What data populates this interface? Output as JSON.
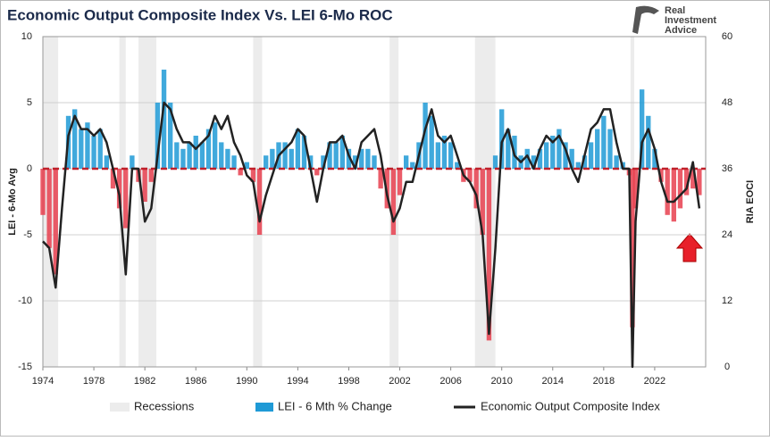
{
  "chart_data": {
    "type": "bar-line",
    "title": "Economic Output Composite Index Vs. LEI 6-Mo ROC",
    "ylabel": "LEI - 6-Mo Avg",
    "y2label": "RIA EOCI",
    "logo_text": [
      "Real",
      "Investment",
      "Advice"
    ],
    "recession_name": "Recessions",
    "recession_color": "#ececec",
    "recessions": [
      [
        1973.9,
        1975.2
      ],
      [
        1980.0,
        1980.5
      ],
      [
        1981.5,
        1982.9
      ],
      [
        1990.5,
        1991.2
      ],
      [
        2001.2,
        2001.9
      ],
      [
        2007.9,
        2009.5
      ],
      [
        2020.1,
        2020.4
      ]
    ],
    "x": [
      1974.0,
      1974.5,
      1975.0,
      1975.5,
      1976.0,
      1976.5,
      1977.0,
      1977.5,
      1978.0,
      1978.5,
      1979.0,
      1979.5,
      1980.0,
      1980.5,
      1981.0,
      1981.5,
      1982.0,
      1982.5,
      1983.0,
      1983.5,
      1984.0,
      1984.5,
      1985.0,
      1985.5,
      1986.0,
      1986.5,
      1987.0,
      1987.5,
      1988.0,
      1988.5,
      1989.0,
      1989.5,
      1990.0,
      1990.5,
      1991.0,
      1991.5,
      1992.0,
      1992.5,
      1993.0,
      1993.5,
      1994.0,
      1994.5,
      1995.0,
      1995.5,
      1996.0,
      1996.5,
      1997.0,
      1997.5,
      1998.0,
      1998.5,
      1999.0,
      1999.5,
      2000.0,
      2000.5,
      2001.0,
      2001.5,
      2002.0,
      2002.5,
      2003.0,
      2003.5,
      2004.0,
      2004.5,
      2005.0,
      2005.5,
      2006.0,
      2006.5,
      2007.0,
      2007.5,
      2008.0,
      2008.5,
      2009.0,
      2009.5,
      2010.0,
      2010.5,
      2011.0,
      2011.5,
      2012.0,
      2012.5,
      2013.0,
      2013.5,
      2014.0,
      2014.5,
      2015.0,
      2015.5,
      2016.0,
      2016.5,
      2017.0,
      2017.5,
      2018.0,
      2018.5,
      2019.0,
      2019.5,
      2020.0,
      2020.25,
      2020.5,
      2021.0,
      2021.5,
      2022.0,
      2022.5,
      2023.0,
      2023.5,
      2024.0,
      2024.5,
      2025.0,
      2025.5
    ],
    "series": [
      {
        "name": "LEI - 6 Mth % Change",
        "color": "#1f9ad6",
        "negative_color": "#e8404f",
        "values": [
          -3.5,
          -6,
          -8,
          0,
          4,
          4.5,
          3,
          3.5,
          2.5,
          3,
          1,
          -1.5,
          -3,
          -4.5,
          1,
          -1,
          -2.5,
          -1,
          5,
          7.5,
          5,
          2,
          1.5,
          2,
          2.5,
          2,
          3,
          3.5,
          2,
          1.5,
          1,
          -0.5,
          0.5,
          -1,
          -5,
          1,
          1.5,
          2,
          2,
          1.5,
          3,
          2.5,
          1,
          -0.5,
          1,
          2,
          2,
          2.5,
          1.5,
          1,
          1.5,
          1.5,
          1,
          -1.5,
          -3,
          -5,
          -2,
          1,
          0.5,
          2,
          5,
          4,
          2,
          2.5,
          2,
          0.5,
          -1,
          -1,
          -3,
          -5,
          -13,
          1,
          4.5,
          3,
          2.5,
          1,
          1.5,
          1,
          1.5,
          2,
          2.5,
          3,
          2,
          1.5,
          0.5,
          1,
          2,
          3,
          4,
          3,
          1,
          0.5,
          -0.5,
          -12,
          -3,
          6,
          4,
          1.5,
          -1,
          -3.5,
          -4,
          -3,
          -2,
          -1.5,
          -2
        ]
      },
      {
        "name": "Economic Output Composite Index",
        "color": "#222222",
        "axis": "y2",
        "values": [
          22.8,
          21.6,
          14.4,
          28.8,
          42,
          45.6,
          43.2,
          43.2,
          42,
          43.2,
          40.8,
          36,
          31.2,
          16.8,
          36,
          36,
          26.4,
          28.8,
          38.4,
          48,
          46.8,
          43.2,
          40.8,
          40.8,
          39.6,
          40.8,
          42,
          45.6,
          43.2,
          45.6,
          40.8,
          38.4,
          34.8,
          33.6,
          26.4,
          31.2,
          34.8,
          38.4,
          39.6,
          40.8,
          43.2,
          42,
          36,
          30,
          36,
          40.8,
          40.8,
          42,
          38.4,
          36,
          40.8,
          42,
          43.2,
          38.4,
          31.2,
          26.4,
          28.8,
          33.6,
          33.6,
          38.4,
          43.2,
          46.8,
          42,
          40.8,
          42,
          38.4,
          34.8,
          33.6,
          31.2,
          24,
          6,
          21.6,
          40.8,
          43.2,
          38.4,
          37.2,
          38.4,
          36,
          39.6,
          42,
          40.8,
          42,
          39.6,
          36,
          33.6,
          38.4,
          43.2,
          44.4,
          46.8,
          46.8,
          40.8,
          36,
          36,
          0,
          26.4,
          40.8,
          43.2,
          39.6,
          33.6,
          30,
          30,
          31.2,
          32.4,
          37.2,
          28.8
        ]
      }
    ],
    "xlim": [
      1974,
      2026
    ],
    "xticks": [
      1974,
      1978,
      1982,
      1986,
      1990,
      1994,
      1998,
      2002,
      2006,
      2010,
      2014,
      2018,
      2022
    ],
    "ylim": [
      -15,
      10
    ],
    "yticks": [
      -15,
      -10,
      -5,
      0,
      5,
      10
    ],
    "y2lim": [
      0,
      60
    ],
    "y2ticks": [
      0,
      12,
      24,
      36,
      48,
      60
    ],
    "zero_line_color": "#c0202a",
    "grid": true
  }
}
